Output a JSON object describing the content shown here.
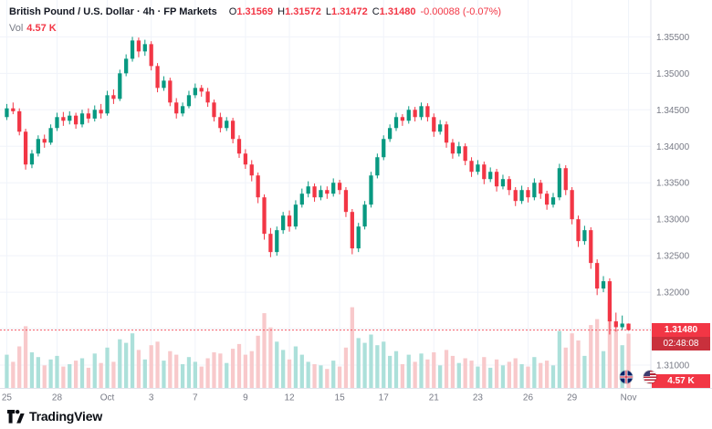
{
  "header": {
    "title": "British Pound / U.S. Dollar · 4h · FP Markets",
    "ohlc": {
      "o_label": "O",
      "o": "1.31569",
      "h_label": "H",
      "h": "1.31572",
      "l_label": "L",
      "l": "1.31472",
      "c_label": "C",
      "c": "1.31480",
      "change": "-0.00088 (-0.07%)"
    },
    "volume_label": "Vol",
    "volume_value": "4.57 K"
  },
  "price_axis": {
    "current_price": "1.31480",
    "countdown": "02:48:08",
    "current_volume": "4.57 K"
  },
  "footer": {
    "logo_text": "TradingView"
  },
  "icons": {
    "pair_flags": [
      "gbp-flag-icon",
      "usd-flag-icon"
    ]
  },
  "chart_data": {
    "type": "candlestick",
    "title": "British Pound / U.S. Dollar",
    "interval": "4h",
    "provider": "FP Markets",
    "ylim": [
      1.3075,
      1.3588
    ],
    "grid": true,
    "current_price": 1.3148,
    "last": {
      "o": 1.31569,
      "h": 1.31572,
      "l": 1.31472,
      "c": 1.3148,
      "change": -0.00088,
      "change_pct": -0.07,
      "volume_k": 4.57
    },
    "y_ticks": [
      {
        "v": 1.355,
        "label": "1.35500"
      },
      {
        "v": 1.35,
        "label": "1.35000"
      },
      {
        "v": 1.345,
        "label": "1.34500"
      },
      {
        "v": 1.34,
        "label": "1.34000"
      },
      {
        "v": 1.335,
        "label": "1.33500"
      },
      {
        "v": 1.33,
        "label": "1.33000"
      },
      {
        "v": 1.325,
        "label": "1.32500"
      },
      {
        "v": 1.32,
        "label": "1.32000"
      },
      {
        "v": 1.31,
        "label": "1.31000"
      }
    ],
    "x_ticks": [
      {
        "i": 0,
        "label": "25"
      },
      {
        "i": 8,
        "label": "28"
      },
      {
        "i": 16,
        "label": "Oct"
      },
      {
        "i": 23,
        "label": "3"
      },
      {
        "i": 30,
        "label": "7"
      },
      {
        "i": 38,
        "label": "9"
      },
      {
        "i": 45,
        "label": "12"
      },
      {
        "i": 53,
        "label": "15"
      },
      {
        "i": 60,
        "label": "17"
      },
      {
        "i": 68,
        "label": "21"
      },
      {
        "i": 75,
        "label": "23"
      },
      {
        "i": 83,
        "label": "26"
      },
      {
        "i": 90,
        "label": "29"
      },
      {
        "i": 99,
        "label": "Nov"
      }
    ],
    "candles": [
      [
        1.344,
        1.3458,
        1.3436,
        1.3452
      ],
      [
        1.3452,
        1.346,
        1.3444,
        1.3448
      ],
      [
        1.3448,
        1.3452,
        1.3415,
        1.342
      ],
      [
        1.342,
        1.3424,
        1.3368,
        1.3375
      ],
      [
        1.3375,
        1.3395,
        1.337,
        1.339
      ],
      [
        1.339,
        1.3415,
        1.3386,
        1.341
      ],
      [
        1.341,
        1.3416,
        1.3398,
        1.3405
      ],
      [
        1.3405,
        1.343,
        1.3402,
        1.3425
      ],
      [
        1.3425,
        1.3446,
        1.3421,
        1.344
      ],
      [
        1.344,
        1.3447,
        1.3428,
        1.3435
      ],
      [
        1.3435,
        1.3448,
        1.343,
        1.3442
      ],
      [
        1.3442,
        1.3446,
        1.3424,
        1.343
      ],
      [
        1.343,
        1.345,
        1.3426,
        1.3445
      ],
      [
        1.3445,
        1.3452,
        1.3432,
        1.3438
      ],
      [
        1.3438,
        1.3456,
        1.3434,
        1.345
      ],
      [
        1.345,
        1.3458,
        1.3438,
        1.3445
      ],
      [
        1.3445,
        1.3476,
        1.3442,
        1.347
      ],
      [
        1.347,
        1.3478,
        1.3458,
        1.3465
      ],
      [
        1.3465,
        1.3505,
        1.3462,
        1.35
      ],
      [
        1.35,
        1.3526,
        1.3496,
        1.352
      ],
      [
        1.352,
        1.355,
        1.3516,
        1.3545
      ],
      [
        1.3545,
        1.3549,
        1.3522,
        1.353
      ],
      [
        1.353,
        1.3546,
        1.3524,
        1.354
      ],
      [
        1.354,
        1.3544,
        1.3504,
        1.351
      ],
      [
        1.351,
        1.3514,
        1.3474,
        1.348
      ],
      [
        1.348,
        1.3496,
        1.3476,
        1.349
      ],
      [
        1.349,
        1.3494,
        1.3455,
        1.346
      ],
      [
        1.346,
        1.3466,
        1.3438,
        1.3445
      ],
      [
        1.3445,
        1.346,
        1.3441,
        1.3455
      ],
      [
        1.3455,
        1.3476,
        1.3452,
        1.347
      ],
      [
        1.347,
        1.3486,
        1.3466,
        1.348
      ],
      [
        1.348,
        1.3484,
        1.3468,
        1.3475
      ],
      [
        1.3475,
        1.348,
        1.3454,
        1.346
      ],
      [
        1.346,
        1.3464,
        1.3434,
        1.344
      ],
      [
        1.344,
        1.3446,
        1.3419,
        1.3425
      ],
      [
        1.3425,
        1.344,
        1.3421,
        1.3435
      ],
      [
        1.3435,
        1.3439,
        1.3404,
        1.341
      ],
      [
        1.341,
        1.3415,
        1.3384,
        1.339
      ],
      [
        1.339,
        1.3396,
        1.3369,
        1.3375
      ],
      [
        1.3375,
        1.3381,
        1.3352,
        1.336
      ],
      [
        1.336,
        1.3364,
        1.3322,
        1.333
      ],
      [
        1.333,
        1.3334,
        1.3272,
        1.328
      ],
      [
        1.328,
        1.3288,
        1.3248,
        1.3255
      ],
      [
        1.3255,
        1.329,
        1.325,
        1.3285
      ],
      [
        1.3285,
        1.331,
        1.328,
        1.3305
      ],
      [
        1.3305,
        1.3312,
        1.3283,
        1.329
      ],
      [
        1.329,
        1.3326,
        1.3286,
        1.332
      ],
      [
        1.332,
        1.3342,
        1.3316,
        1.3335
      ],
      [
        1.3335,
        1.3352,
        1.333,
        1.3345
      ],
      [
        1.3345,
        1.3349,
        1.3324,
        1.333
      ],
      [
        1.333,
        1.3346,
        1.3326,
        1.334
      ],
      [
        1.334,
        1.3345,
        1.3328,
        1.3335
      ],
      [
        1.3335,
        1.3356,
        1.3331,
        1.335
      ],
      [
        1.335,
        1.3354,
        1.3334,
        1.334
      ],
      [
        1.334,
        1.3344,
        1.3303,
        1.331
      ],
      [
        1.331,
        1.3314,
        1.3252,
        1.326
      ],
      [
        1.326,
        1.3295,
        1.3255,
        1.329
      ],
      [
        1.329,
        1.3325,
        1.3286,
        1.332
      ],
      [
        1.332,
        1.3365,
        1.3316,
        1.336
      ],
      [
        1.336,
        1.339,
        1.3356,
        1.3385
      ],
      [
        1.3385,
        1.3415,
        1.3381,
        1.341
      ],
      [
        1.341,
        1.343,
        1.3406,
        1.3425
      ],
      [
        1.3425,
        1.3446,
        1.3421,
        1.344
      ],
      [
        1.344,
        1.3444,
        1.3428,
        1.3435
      ],
      [
        1.3435,
        1.3455,
        1.3431,
        1.345
      ],
      [
        1.345,
        1.3454,
        1.3434,
        1.344
      ],
      [
        1.344,
        1.346,
        1.3436,
        1.3455
      ],
      [
        1.3455,
        1.3459,
        1.3434,
        1.344
      ],
      [
        1.344,
        1.3445,
        1.3413,
        1.342
      ],
      [
        1.342,
        1.3436,
        1.3416,
        1.343
      ],
      [
        1.343,
        1.3434,
        1.3398,
        1.3405
      ],
      [
        1.3405,
        1.341,
        1.3383,
        1.339
      ],
      [
        1.339,
        1.3406,
        1.3386,
        1.34
      ],
      [
        1.34,
        1.3404,
        1.3374,
        1.338
      ],
      [
        1.338,
        1.3385,
        1.3358,
        1.3365
      ],
      [
        1.3365,
        1.3381,
        1.3361,
        1.3375
      ],
      [
        1.3375,
        1.3379,
        1.3348,
        1.3355
      ],
      [
        1.3355,
        1.3371,
        1.3351,
        1.3365
      ],
      [
        1.3365,
        1.3369,
        1.3338,
        1.3345
      ],
      [
        1.3345,
        1.3361,
        1.3341,
        1.3355
      ],
      [
        1.3355,
        1.3359,
        1.3333,
        1.334
      ],
      [
        1.334,
        1.3344,
        1.3318,
        1.3325
      ],
      [
        1.3325,
        1.3346,
        1.3321,
        1.334
      ],
      [
        1.334,
        1.3344,
        1.3323,
        1.333
      ],
      [
        1.333,
        1.3356,
        1.3326,
        1.335
      ],
      [
        1.335,
        1.3354,
        1.3328,
        1.3335
      ],
      [
        1.3335,
        1.3339,
        1.3313,
        1.332
      ],
      [
        1.332,
        1.3336,
        1.3316,
        1.333
      ],
      [
        1.333,
        1.3376,
        1.3326,
        1.337
      ],
      [
        1.337,
        1.3374,
        1.3333,
        1.334
      ],
      [
        1.334,
        1.3344,
        1.3293,
        1.33
      ],
      [
        1.33,
        1.3305,
        1.3262,
        1.327
      ],
      [
        1.327,
        1.3291,
        1.3265,
        1.3285
      ],
      [
        1.3285,
        1.3289,
        1.3232,
        1.324
      ],
      [
        1.324,
        1.3245,
        1.3196,
        1.3205
      ],
      [
        1.3205,
        1.3222,
        1.32,
        1.3215
      ],
      [
        1.3215,
        1.3219,
        1.3142,
        1.316
      ],
      [
        1.316,
        1.3172,
        1.3146,
        1.3152
      ],
      [
        1.3152,
        1.3168,
        1.3148,
        1.3157
      ],
      [
        1.31569,
        1.31572,
        1.31472,
        1.3148
      ]
    ],
    "volumes_k": [
      2.8,
      2.2,
      3.5,
      5.2,
      3.0,
      2.6,
      1.9,
      2.4,
      2.7,
      1.8,
      2.0,
      2.3,
      2.5,
      1.7,
      2.9,
      2.1,
      3.4,
      2.2,
      4.1,
      3.8,
      4.6,
      3.2,
      2.4,
      3.6,
      3.9,
      2.3,
      3.1,
      2.8,
      2.0,
      2.6,
      2.2,
      1.8,
      2.5,
      3.0,
      2.9,
      2.1,
      3.3,
      3.7,
      2.8,
      3.1,
      4.4,
      6.3,
      5.1,
      3.9,
      3.2,
      2.4,
      3.5,
      2.8,
      2.2,
      2.0,
      1.9,
      1.6,
      2.3,
      1.8,
      3.4,
      6.8,
      4.2,
      3.8,
      4.5,
      3.6,
      3.9,
      2.7,
      3.1,
      2.0,
      2.8,
      2.2,
      2.9,
      2.4,
      3.0,
      1.9,
      3.2,
      2.7,
      2.1,
      2.5,
      2.3,
      1.8,
      2.6,
      1.7,
      2.4,
      1.9,
      2.2,
      2.5,
      2.0,
      1.8,
      2.6,
      2.1,
      2.3,
      1.9,
      4.8,
      3.4,
      4.6,
      4.0,
      2.7,
      5.3,
      5.8,
      3.1,
      7.2,
      4.9,
      3.6,
      4.57
    ],
    "colors": {
      "up": "#089981",
      "down": "#f23645",
      "vol_up": "#ace0da",
      "vol_down": "#f8c9cb",
      "grid": "#f0f3fa",
      "axis_border": "#e0e3eb",
      "axis_text": "#787b86"
    }
  }
}
